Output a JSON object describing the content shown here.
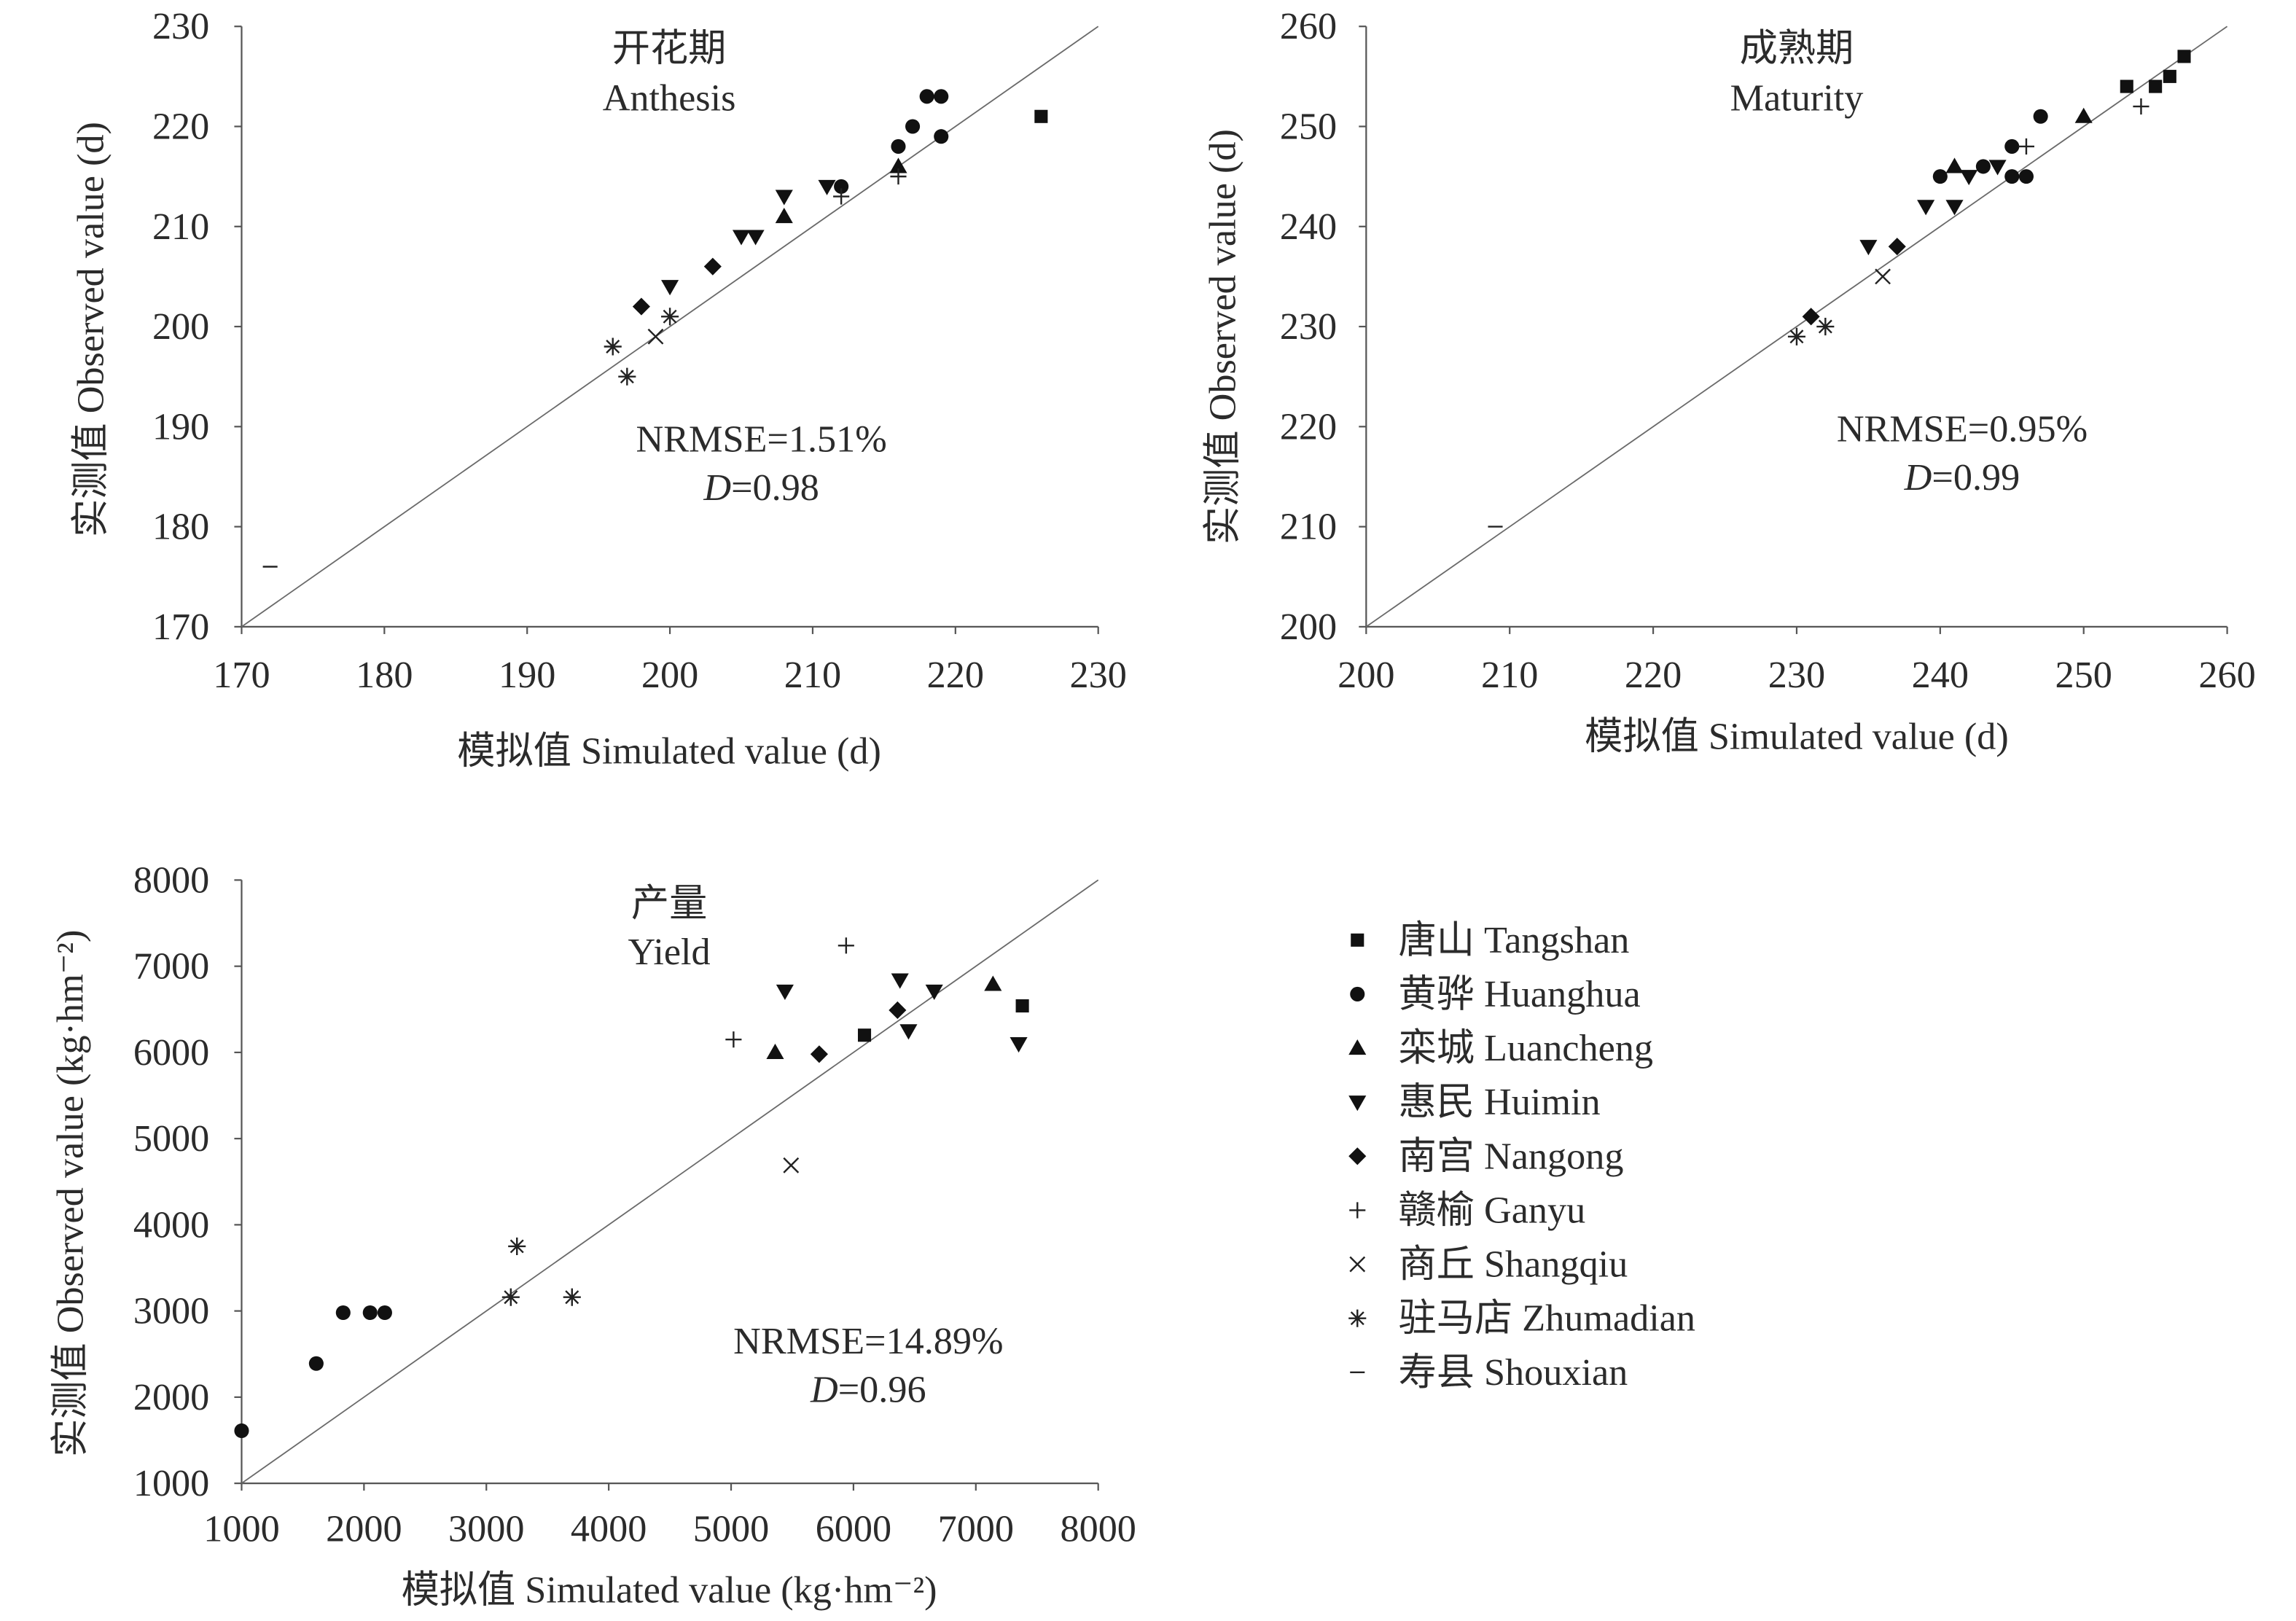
{
  "chart_data": [
    {
      "type": "scatter",
      "title": "开花期",
      "title_en": "Anthesis",
      "xlabel": "模拟值 Simulated value (d)",
      "ylabel": "实测值 Observed value (d)",
      "xlim": [
        170,
        230
      ],
      "ylim": [
        170,
        230
      ],
      "xticks": [
        170,
        180,
        190,
        200,
        210,
        220,
        230
      ],
      "yticks": [
        170,
        180,
        190,
        200,
        210,
        220,
        230
      ],
      "grid": false,
      "identity_line": true,
      "annotations": {
        "nrmse": "NRMSE=1.51%",
        "d_symbol": "D",
        "d_value": "=0.98"
      },
      "series": [
        {
          "marker": "square",
          "points": [
            [
              226,
              221
            ]
          ]
        },
        {
          "marker": "circle",
          "points": [
            [
              218,
              223
            ],
            [
              219,
              223
            ],
            [
              217,
              220
            ],
            [
              216,
              218
            ],
            [
              219,
              219
            ],
            [
              212,
              214
            ]
          ]
        },
        {
          "marker": "triangle-up",
          "points": [
            [
              216,
              216
            ],
            [
              208,
              211
            ]
          ]
        },
        {
          "marker": "triangle-down",
          "points": [
            [
              208,
              213
            ],
            [
              211,
              214
            ],
            [
              205,
              209
            ],
            [
              206,
              209
            ],
            [
              200,
              204
            ]
          ]
        },
        {
          "marker": "diamond",
          "points": [
            [
              198,
              202
            ],
            [
              203,
              206
            ]
          ]
        },
        {
          "marker": "plus",
          "points": [
            [
              216,
              215
            ],
            [
              212,
              213
            ]
          ]
        },
        {
          "marker": "cross",
          "points": [
            [
              199,
              199
            ]
          ]
        },
        {
          "marker": "asterisk",
          "points": [
            [
              196,
              198
            ],
            [
              197,
              195
            ],
            [
              200,
              201
            ]
          ]
        },
        {
          "marker": "dash",
          "points": [
            [
              172,
              176
            ]
          ]
        }
      ]
    },
    {
      "type": "scatter",
      "title": "成熟期",
      "title_en": "Maturity",
      "xlabel": "模拟值 Simulated value (d)",
      "ylabel": "实测值 Observed value (d)",
      "xlim": [
        200,
        260
      ],
      "ylim": [
        200,
        260
      ],
      "xticks": [
        200,
        210,
        220,
        230,
        240,
        250,
        260
      ],
      "yticks": [
        200,
        210,
        220,
        230,
        240,
        250,
        260
      ],
      "grid": false,
      "identity_line": true,
      "annotations": {
        "nrmse": "NRMSE=0.95%",
        "d_symbol": "D",
        "d_value": "=0.99"
      },
      "series": [
        {
          "marker": "square",
          "points": [
            [
              257,
              257
            ],
            [
              256,
              255
            ],
            [
              255,
              254
            ],
            [
              253,
              254
            ]
          ]
        },
        {
          "marker": "circle",
          "points": [
            [
              247,
              251
            ],
            [
              245,
              248
            ],
            [
              245,
              245
            ],
            [
              246,
              245
            ],
            [
              243,
              246
            ],
            [
              240,
              245
            ]
          ]
        },
        {
          "marker": "triangle-up",
          "points": [
            [
              250,
              251
            ],
            [
              241,
              246
            ]
          ]
        },
        {
          "marker": "triangle-down",
          "points": [
            [
              244,
              246
            ],
            [
              242,
              245
            ],
            [
              239,
              242
            ],
            [
              241,
              242
            ],
            [
              235,
              238
            ]
          ]
        },
        {
          "marker": "diamond",
          "points": [
            [
              237,
              238
            ],
            [
              231,
              231
            ]
          ]
        },
        {
          "marker": "plus",
          "points": [
            [
              254,
              252
            ],
            [
              246,
              248
            ]
          ]
        },
        {
          "marker": "cross",
          "points": [
            [
              236,
              235
            ]
          ]
        },
        {
          "marker": "asterisk",
          "points": [
            [
              230,
              229
            ],
            [
              232,
              230
            ]
          ]
        },
        {
          "marker": "dash",
          "points": [
            [
              209,
              210
            ]
          ]
        }
      ]
    },
    {
      "type": "scatter",
      "title": "产量",
      "title_en": "Yield",
      "xlabel": "模拟值 Simulated value (kg·hm⁻²)",
      "ylabel": "实测值 Observed value (kg·hm⁻²)",
      "xlim": [
        1000,
        8000
      ],
      "ylim": [
        1000,
        8000
      ],
      "xticks": [
        1000,
        2000,
        3000,
        4000,
        5000,
        6000,
        7000,
        8000
      ],
      "yticks": [
        1000,
        2000,
        3000,
        4000,
        5000,
        6000,
        7000,
        8000
      ],
      "grid": false,
      "identity_line": true,
      "annotations": {
        "nrmse": "NRMSE=14.89%",
        "d_symbol": "D",
        "d_value": "=0.96"
      },
      "series": [
        {
          "marker": "square",
          "points": [
            [
              6090,
              6200
            ],
            [
              7380,
              6540
            ]
          ]
        },
        {
          "marker": "circle",
          "points": [
            [
              1000,
              1610
            ],
            [
              1610,
              2390
            ],
            [
              1830,
              2980
            ],
            [
              2050,
              2980
            ],
            [
              2170,
              2980
            ]
          ]
        },
        {
          "marker": "triangle-up",
          "points": [
            [
              5360,
              6000
            ],
            [
              7140,
              6790
            ]
          ]
        },
        {
          "marker": "triangle-down",
          "points": [
            [
              5440,
              6710
            ],
            [
              6380,
              6840
            ],
            [
              6450,
              6250
            ],
            [
              6660,
              6710
            ],
            [
              7350,
              6100
            ]
          ]
        },
        {
          "marker": "diamond",
          "points": [
            [
              5720,
              5980
            ],
            [
              6360,
              6490
            ]
          ]
        },
        {
          "marker": "plus",
          "points": [
            [
              5940,
              7240
            ],
            [
              5020,
              6150
            ]
          ]
        },
        {
          "marker": "cross",
          "points": [
            [
              5490,
              4690
            ]
          ]
        },
        {
          "marker": "asterisk",
          "points": [
            [
              3250,
              3750
            ],
            [
              3200,
              3160
            ],
            [
              3700,
              3160
            ]
          ]
        },
        {
          "marker": "dash",
          "points": []
        }
      ]
    }
  ],
  "legend": {
    "placement": "bottom-right",
    "entries": [
      {
        "name": "唐山 Tangshan",
        "marker": "square"
      },
      {
        "name": "黄骅 Huanghua",
        "marker": "circle"
      },
      {
        "name": "栾城 Luancheng",
        "marker": "triangle-up"
      },
      {
        "name": "惠民 Huimin",
        "marker": "triangle-down"
      },
      {
        "name": "南宫 Nangong",
        "marker": "diamond"
      },
      {
        "name": "赣榆 Ganyu",
        "marker": "plus"
      },
      {
        "name": "商丘 Shangqiu",
        "marker": "cross"
      },
      {
        "name": "驻马店 Zhumadian",
        "marker": "asterisk"
      },
      {
        "name": "寿县 Shouxian",
        "marker": "dash"
      }
    ]
  }
}
